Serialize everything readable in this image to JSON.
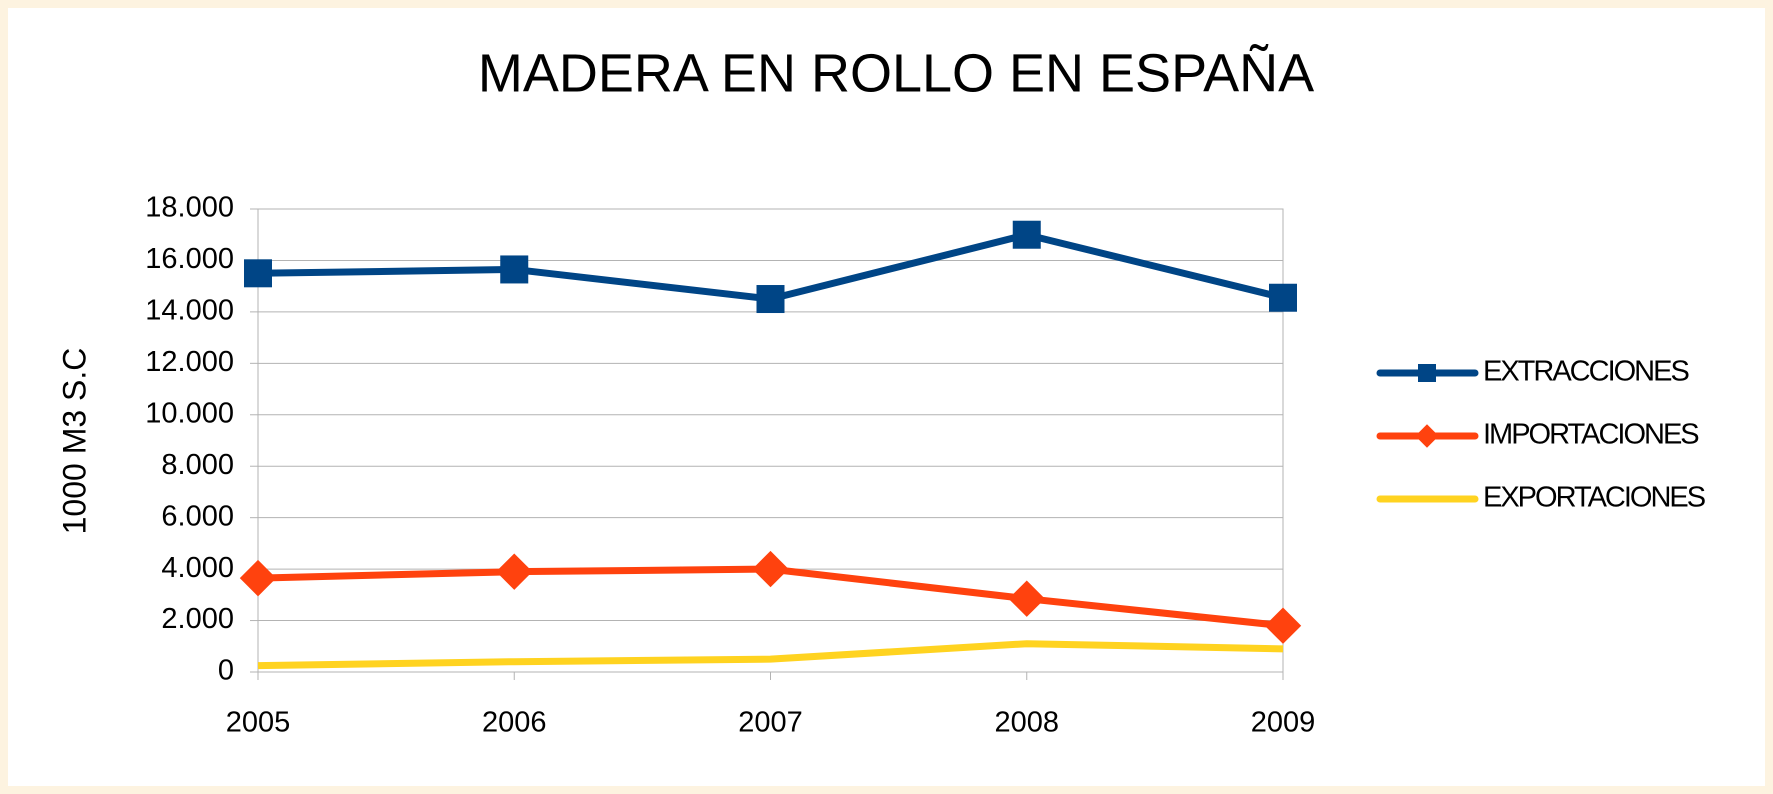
{
  "chart_data": {
    "type": "line",
    "title": "MADERA EN ROLLO EN ESPAÑA",
    "y_label": "1000 M3 S.C",
    "categories": [
      "2005",
      "2006",
      "2007",
      "2008",
      "2009"
    ],
    "series": [
      {
        "name": "EXTRACCIONES",
        "color": "#004586",
        "marker": "square",
        "values": [
          15500,
          15650,
          14500,
          17000,
          14550
        ]
      },
      {
        "name": "IMPORTACIONES",
        "color": "#ff420e",
        "marker": "diamond",
        "values": [
          3650,
          3900,
          4000,
          2850,
          1800
        ]
      },
      {
        "name": "EXPORTACIONES",
        "color": "#ffd320",
        "marker": "none",
        "values": [
          250,
          400,
          500,
          1100,
          900
        ]
      }
    ],
    "ylim": [
      0,
      18000
    ],
    "yticks": [
      0,
      {
        "value": 2000,
        "label": "2.000"
      },
      {
        "value": 4000,
        "label": "4.000"
      },
      {
        "value": 6000,
        "label": "6.000"
      },
      {
        "value": 8000,
        "label": "8.000"
      },
      {
        "value": 10000,
        "label": "10.000"
      },
      {
        "value": 12000,
        "label": "12.000"
      },
      {
        "value": 14000,
        "label": "14.000"
      },
      {
        "value": 16000,
        "label": "16.000"
      },
      {
        "value": 18000,
        "label": "18.000"
      }
    ],
    "grid": true,
    "legend": "right"
  }
}
